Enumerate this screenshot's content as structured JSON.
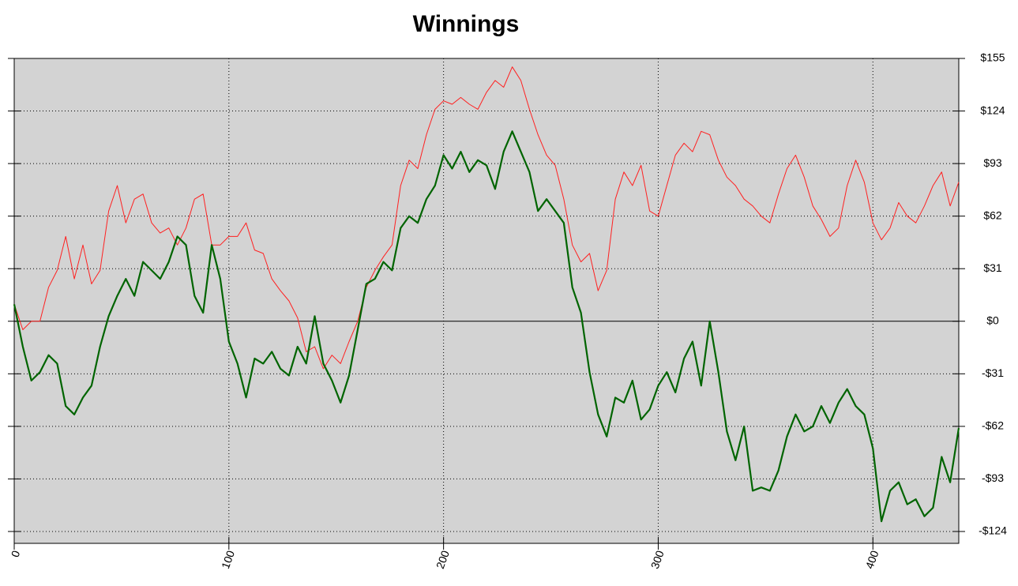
{
  "chart_data": {
    "type": "line",
    "title": "Winnings",
    "x": [
      0,
      4,
      8,
      12,
      16,
      20,
      24,
      28,
      32,
      36,
      40,
      44,
      48,
      52,
      56,
      60,
      64,
      68,
      72,
      76,
      80,
      84,
      88,
      92,
      96,
      100,
      104,
      108,
      112,
      116,
      120,
      124,
      128,
      132,
      136,
      140,
      144,
      148,
      152,
      156,
      160,
      164,
      168,
      172,
      176,
      180,
      184,
      188,
      192,
      196,
      200,
      204,
      208,
      212,
      216,
      220,
      224,
      228,
      232,
      236,
      240,
      244,
      248,
      252,
      256,
      260,
      264,
      268,
      272,
      276,
      280,
      284,
      288,
      292,
      296,
      300,
      304,
      308,
      312,
      316,
      320,
      324,
      328,
      332,
      336,
      340,
      344,
      348,
      352,
      356,
      360,
      364,
      368,
      372,
      376,
      380,
      384,
      388,
      392,
      396,
      400,
      404,
      408,
      412,
      416,
      420,
      424,
      428,
      432,
      436,
      440
    ],
    "series": [
      {
        "color": "#ff2020",
        "width": 1,
        "values": [
          10,
          -5,
          0,
          0,
          20,
          30,
          50,
          25,
          45,
          22,
          30,
          65,
          80,
          58,
          72,
          75,
          58,
          52,
          55,
          45,
          55,
          72,
          75,
          45,
          45,
          50,
          50,
          58,
          42,
          40,
          25,
          18,
          12,
          2,
          -18,
          -15,
          -28,
          -20,
          -25,
          -12,
          0,
          20,
          30,
          38,
          45,
          80,
          95,
          90,
          110,
          125,
          130,
          128,
          132,
          128,
          125,
          135,
          142,
          138,
          150,
          142,
          125,
          110,
          98,
          92,
          72,
          45,
          35,
          40,
          18,
          30,
          72,
          88,
          80,
          92,
          65,
          62,
          80,
          98,
          105,
          100,
          112,
          110,
          95,
          85,
          80,
          72,
          68,
          62,
          58,
          75,
          90,
          98,
          85,
          68,
          60,
          50,
          55,
          80,
          95,
          82,
          58,
          48,
          55,
          70,
          62,
          58,
          68,
          80,
          88,
          68,
          82
        ]
      },
      {
        "color": "#006400",
        "width": 2.2,
        "values": [
          10,
          -15,
          -35,
          -30,
          -20,
          -25,
          -50,
          -55,
          -45,
          -38,
          -15,
          3,
          15,
          25,
          15,
          35,
          30,
          25,
          35,
          50,
          45,
          15,
          5,
          45,
          25,
          -12,
          -25,
          -45,
          -22,
          -25,
          -18,
          -28,
          -32,
          -15,
          -25,
          3,
          -25,
          -35,
          -48,
          -32,
          -5,
          22,
          25,
          35,
          30,
          55,
          62,
          58,
          72,
          80,
          98,
          90,
          100,
          88,
          95,
          92,
          78,
          100,
          112,
          100,
          88,
          65,
          72,
          65,
          58,
          20,
          5,
          -30,
          -55,
          -68,
          -45,
          -48,
          -35,
          -58,
          -52,
          -38,
          -30,
          -42,
          -22,
          -12,
          -38,
          0,
          -30,
          -65,
          -82,
          -62,
          -100,
          -98,
          -100,
          -88,
          -68,
          -55,
          -65,
          -62,
          -50,
          -60,
          -48,
          -40,
          -50,
          -55,
          -75,
          -118,
          -100,
          -95,
          -108,
          -105,
          -115,
          -110,
          -80,
          -95,
          -63
        ]
      }
    ],
    "xlim": [
      0,
      440
    ],
    "xticks": [
      0,
      100,
      200,
      300,
      400
    ],
    "ylim": [
      -131,
      155
    ],
    "yticks": [
      {
        "value": -124,
        "label": "-$124"
      },
      {
        "value": -93,
        "label": "-$93"
      },
      {
        "value": -62,
        "label": "-$62"
      },
      {
        "value": -31,
        "label": "-$31"
      },
      {
        "value": 0,
        "label": "$0"
      },
      {
        "value": 31,
        "label": "$31"
      },
      {
        "value": 62,
        "label": "$62"
      },
      {
        "value": 93,
        "label": "$93"
      },
      {
        "value": 124,
        "label": "$124"
      },
      {
        "value": 155,
        "label": "$155"
      }
    ],
    "grid": true,
    "zero_line": true
  }
}
